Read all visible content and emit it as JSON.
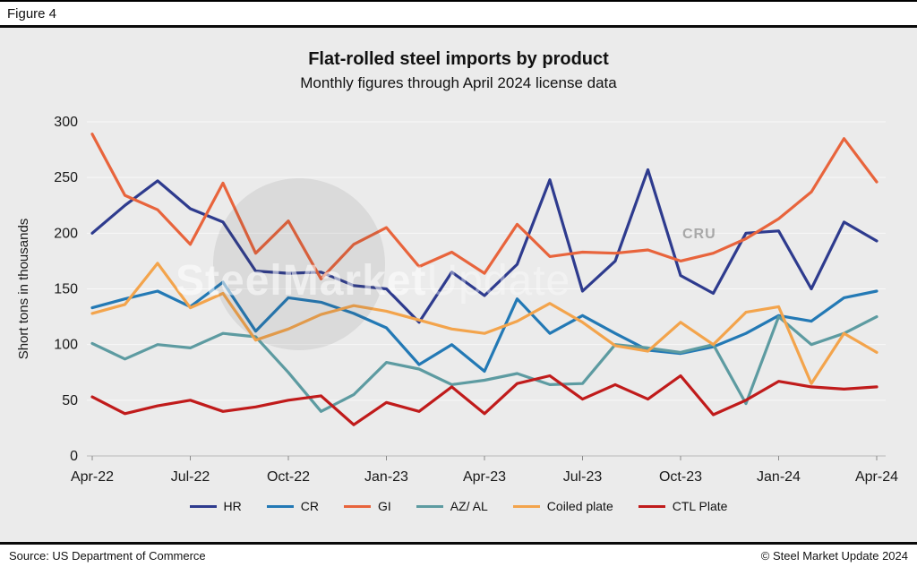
{
  "figure_label": "Figure 4",
  "watermark": {
    "bold": "SteelMarket",
    "light": "Update",
    "cru": "CRU"
  },
  "footer": {
    "source": "Source: US Department of Commerce",
    "copyright": "© Steel Market Update 2024"
  },
  "chart_data": {
    "type": "line",
    "title": "Flat-rolled steel imports by product",
    "subtitle": "Monthly figures through April 2024 license data",
    "ylabel": "Short tons in thousands",
    "ylim": [
      0,
      300
    ],
    "ytick_step": 50,
    "grid": "horizontal faint",
    "legend_position": "bottom",
    "background": "#ebebeb",
    "x": [
      "Apr-22",
      "May-22",
      "Jun-22",
      "Jul-22",
      "Aug-22",
      "Sep-22",
      "Oct-22",
      "Nov-22",
      "Dec-22",
      "Jan-23",
      "Feb-23",
      "Mar-23",
      "Apr-23",
      "May-23",
      "Jun-23",
      "Jul-23",
      "Aug-23",
      "Sep-23",
      "Oct-23",
      "Nov-23",
      "Dec-23",
      "Jan-24",
      "Feb-24",
      "Mar-24",
      "Apr-24"
    ],
    "xtick_labels": [
      "Apr-22",
      "Jul-22",
      "Oct-22",
      "Jan-23",
      "Apr-23",
      "Jul-23",
      "Oct-23",
      "Jan-24",
      "Apr-24"
    ],
    "series": [
      {
        "name": "HR",
        "color": "#2e3b8e",
        "values": [
          200,
          225,
          247,
          222,
          210,
          166,
          164,
          165,
          153,
          150,
          120,
          165,
          144,
          172,
          248,
          148,
          175,
          257,
          162,
          146,
          200,
          202,
          150,
          210,
          193
        ]
      },
      {
        "name": "CR",
        "color": "#2379b5",
        "values": [
          133,
          141,
          148,
          134,
          156,
          112,
          142,
          138,
          128,
          115,
          82,
          100,
          76,
          141,
          110,
          126,
          110,
          95,
          92,
          98,
          110,
          126,
          121,
          142,
          148
        ]
      },
      {
        "name": "GI",
        "color": "#e8643c",
        "values": [
          289,
          234,
          221,
          190,
          245,
          182,
          211,
          159,
          190,
          205,
          170,
          183,
          164,
          208,
          179,
          183,
          182,
          185,
          175,
          182,
          195,
          213,
          237,
          285,
          246
        ]
      },
      {
        "name": "AZ/ AL",
        "color": "#5d9ba1",
        "values": [
          101,
          87,
          100,
          97,
          110,
          107,
          75,
          40,
          55,
          84,
          78,
          64,
          68,
          74,
          64,
          65,
          100,
          97,
          93,
          100,
          47,
          125,
          100,
          110,
          125
        ]
      },
      {
        "name": "Coiled plate",
        "color": "#f3a44c",
        "values": [
          128,
          136,
          173,
          133,
          146,
          104,
          114,
          127,
          135,
          130,
          122,
          114,
          110,
          121,
          137,
          120,
          99,
          94,
          120,
          100,
          129,
          134,
          65,
          110,
          93
        ]
      },
      {
        "name": "CTL Plate",
        "color": "#c01b1b",
        "values": [
          53,
          38,
          45,
          50,
          40,
          44,
          50,
          54,
          28,
          48,
          40,
          62,
          38,
          65,
          72,
          51,
          64,
          51,
          72,
          37,
          50,
          67,
          62,
          60,
          62
        ]
      }
    ]
  }
}
